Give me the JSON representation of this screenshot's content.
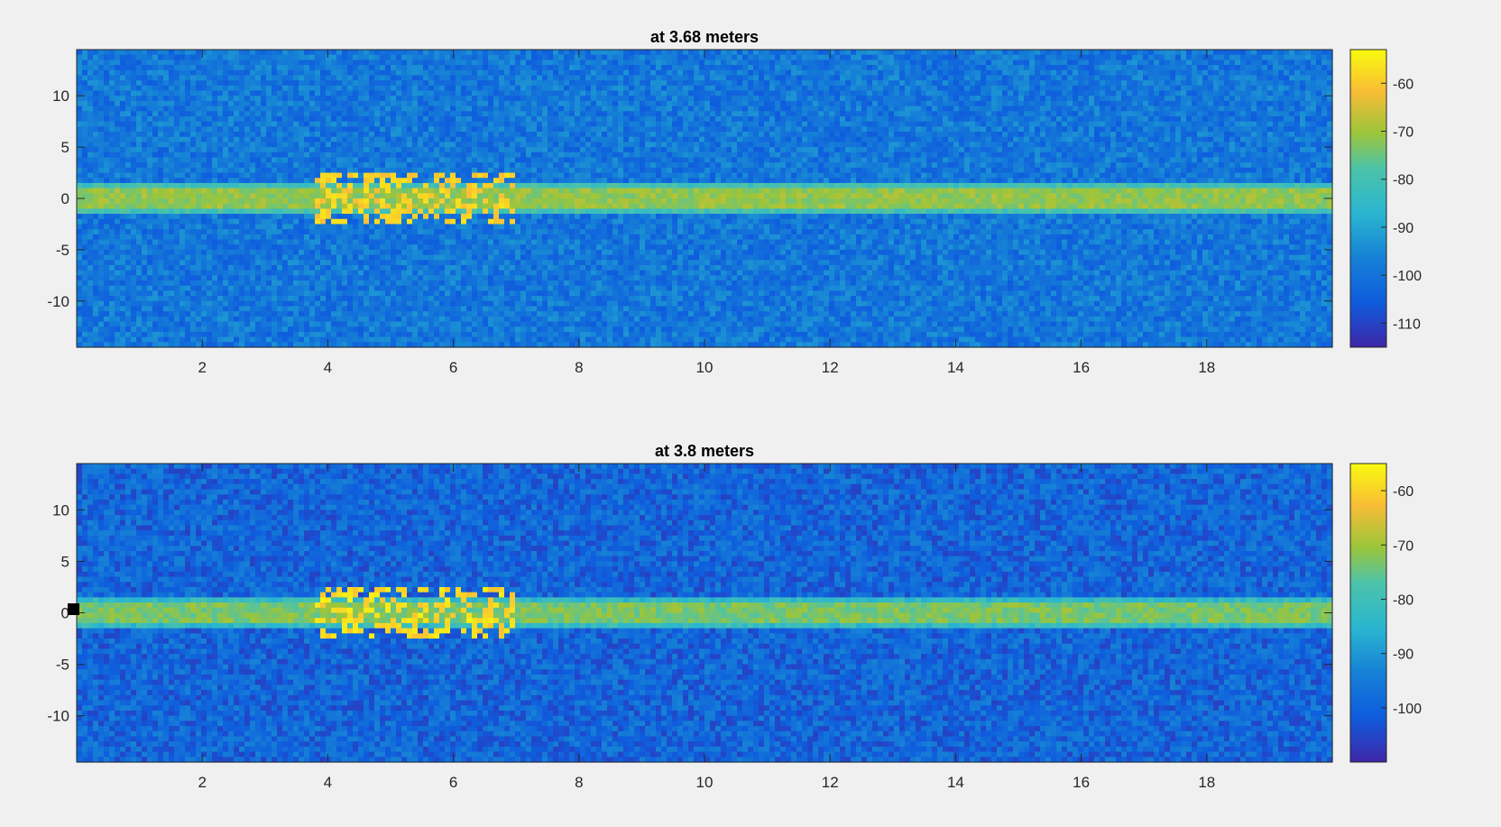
{
  "chart_data": [
    {
      "type": "heatmap",
      "title": "at 3.68 meters",
      "xlabel": "",
      "ylabel": "",
      "xlim": [
        0,
        20
      ],
      "ylim": [
        -14.5,
        14.5
      ],
      "xticks": [
        "2",
        "4",
        "6",
        "8",
        "10",
        "12",
        "14",
        "16",
        "18"
      ],
      "yticks": [
        "10",
        "5",
        "0",
        "-5",
        "-10"
      ],
      "colorbar_ticks": [
        "-60",
        "-70",
        "-80",
        "-90",
        "-100",
        "-110"
      ],
      "colorbar_range": [
        -115,
        -53
      ],
      "colormap": [
        "#3e26a8",
        "#0f5cdd",
        "#1681d6",
        "#2ab6d0",
        "#4cc3a9",
        "#9cc53a",
        "#f9bd36",
        "#f8fa0d"
      ],
      "band_y": 0,
      "band_level": -72,
      "background_level": -100,
      "grid": false
    },
    {
      "type": "heatmap",
      "title": "at 3.8 meters",
      "xlabel": "",
      "ylabel": "",
      "xlim": [
        0,
        20
      ],
      "ylim": [
        -14.5,
        14.5
      ],
      "xticks": [
        "2",
        "4",
        "6",
        "8",
        "10",
        "12",
        "14",
        "16",
        "18"
      ],
      "yticks": [
        "10",
        "5",
        "0",
        "-5",
        "-10"
      ],
      "colorbar_ticks": [
        "-60",
        "-70",
        "-80",
        "-90",
        "-100"
      ],
      "colorbar_range": [
        -110,
        -55
      ],
      "colormap": [
        "#3e26a8",
        "#0f5cdd",
        "#1681d6",
        "#2ab6d0",
        "#4cc3a9",
        "#9cc53a",
        "#f9bd36",
        "#f8fa0d"
      ],
      "band_y": 0,
      "band_level": -74,
      "background_level": -100,
      "grid": false
    }
  ]
}
